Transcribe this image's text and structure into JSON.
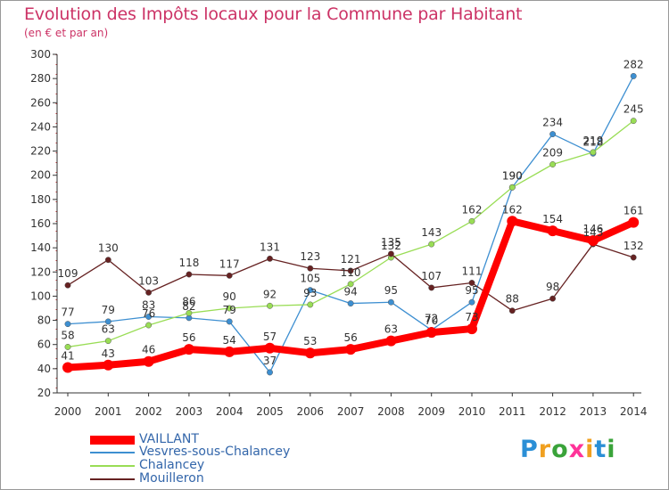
{
  "title": "Evolution des Impôts locaux pour la Commune par Habitant",
  "subtitle": "(en € et par an)",
  "logo": {
    "text": "Proxiti",
    "letter_colors": [
      "#2b8fd6",
      "#f0a020",
      "#3aa33a",
      "#ff3399",
      "#f0a020",
      "#2b8fd6",
      "#3aa33a"
    ]
  },
  "chart_data": {
    "type": "line",
    "x": [
      2000,
      2001,
      2002,
      2003,
      2004,
      2005,
      2006,
      2007,
      2008,
      2009,
      2010,
      2011,
      2012,
      2013,
      2014
    ],
    "ylim": [
      20,
      300
    ],
    "yticks": [
      20,
      40,
      60,
      80,
      100,
      120,
      140,
      160,
      180,
      200,
      220,
      240,
      260,
      280,
      300
    ],
    "grid": false,
    "legend_position": "bottom-left",
    "series": [
      {
        "name": "VAILLANT",
        "color": "#ff0000",
        "emphasis": true,
        "values": [
          41,
          43,
          46,
          56,
          54,
          57,
          53,
          56,
          63,
          70,
          73,
          162,
          154,
          146,
          161
        ]
      },
      {
        "name": "Vesvres-sous-Chalancey",
        "color": "#3d8fd1",
        "emphasis": false,
        "values": [
          77,
          79,
          83,
          82,
          79,
          37,
          105,
          94,
          95,
          72,
          95,
          190,
          234,
          218,
          282
        ]
      },
      {
        "name": "Chalancey",
        "color": "#99dd55",
        "emphasis": false,
        "values": [
          58,
          63,
          76,
          86,
          90,
          92,
          93,
          110,
          132,
          143,
          162,
          190,
          209,
          219,
          245
        ]
      },
      {
        "name": "Mouilleron",
        "color": "#662222",
        "emphasis": false,
        "values": [
          109,
          130,
          103,
          118,
          117,
          131,
          123,
          121,
          135,
          107,
          111,
          88,
          98,
          143,
          132
        ]
      }
    ]
  }
}
